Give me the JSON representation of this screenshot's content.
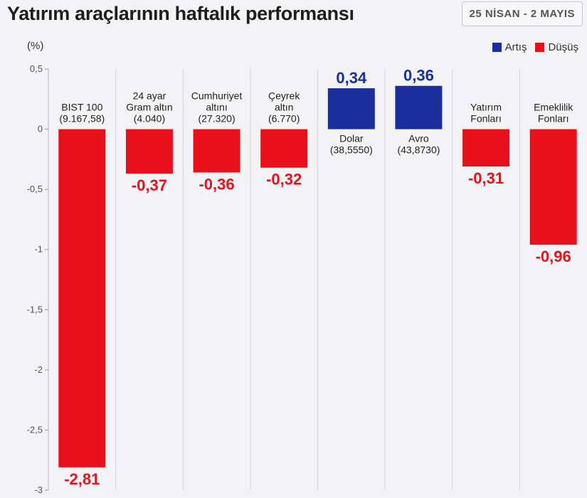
{
  "header": {
    "title": "Yatırım araçlarının haftalık performansı",
    "date_range": "25 NİSAN - 2 MAYIS"
  },
  "legend": {
    "up_label": "Artış",
    "down_label": "Düşüş"
  },
  "colors": {
    "up": "#1a2f9b",
    "down": "#e8101b"
  },
  "chart_data": {
    "type": "bar",
    "ylabel": "(%)",
    "ylim": [
      -3,
      0.5
    ],
    "yticks": [
      "0,5",
      "0",
      "-0,5",
      "-1",
      "-1,5",
      "-2",
      "-2,5",
      "-3"
    ],
    "ytick_values": [
      0.5,
      0,
      -0.5,
      -1,
      -1.5,
      -2,
      -2.5,
      -3
    ],
    "categories": [
      {
        "name": "BIST 100",
        "lines": [
          "BIST 100",
          "(9.167,58)"
        ],
        "value": -2.81,
        "label": "-2,81"
      },
      {
        "name": "24 ayar Gram altın",
        "lines": [
          "24 ayar",
          "Gram altın",
          "(4.040)"
        ],
        "value": -0.37,
        "label": "-0,37"
      },
      {
        "name": "Cumhuriyet altını",
        "lines": [
          "Cumhuriyet",
          "altını",
          "(27.320)"
        ],
        "value": -0.36,
        "label": "-0,36"
      },
      {
        "name": "Çeyrek altın",
        "lines": [
          "Çeyrek",
          "altın",
          "(6.770)"
        ],
        "value": -0.32,
        "label": "-0,32"
      },
      {
        "name": "Dolar",
        "lines": [
          "Dolar",
          "(38,5550)"
        ],
        "value": 0.34,
        "label": "0,34"
      },
      {
        "name": "Avro",
        "lines": [
          "Avro",
          "(43,8730)"
        ],
        "value": 0.36,
        "label": "0,36"
      },
      {
        "name": "Yatırım Fonları",
        "lines": [
          "Yatırım",
          "Fonları"
        ],
        "value": -0.31,
        "label": "-0,31"
      },
      {
        "name": "Emeklilik Fonları",
        "lines": [
          "Emeklilik",
          "Fonları"
        ],
        "value": -0.96,
        "label": "-0,96"
      }
    ],
    "grid": "vertical separators",
    "legend_position": "top-right"
  }
}
